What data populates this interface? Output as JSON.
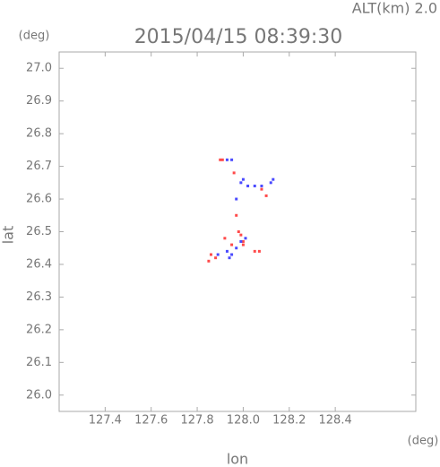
{
  "chart_data": {
    "type": "scatter",
    "title": "2015/04/15 08:39:30",
    "subtitle": "ALT(km) 2.0",
    "y_unit": "(deg)",
    "x_unit": "(deg)",
    "xlabel": "lon",
    "ylabel": "lat",
    "xlim": [
      127.2,
      128.75
    ],
    "ylim": [
      25.95,
      27.05
    ],
    "xticks": [
      127.4,
      127.6,
      127.8,
      {
        "value": 128.0,
        "label": "128.0"
      },
      128.2,
      128.4
    ],
    "yticks": [
      {
        "value": 26.0,
        "label": "26.0"
      },
      26.1,
      26.2,
      26.3,
      26.4,
      26.5,
      26.6,
      26.7,
      26.8,
      26.9,
      {
        "value": 27.0,
        "label": "27.0"
      }
    ],
    "series": [
      {
        "color": "#ff4a4a",
        "x": [
          127.9,
          127.91,
          128.1,
          128.08,
          127.96,
          127.97,
          127.88,
          127.85,
          127.86,
          127.99,
          128.0,
          127.95,
          128.0,
          128.05,
          128.07,
          127.98,
          127.92
        ],
        "y": [
          26.72,
          26.72,
          26.61,
          26.63,
          26.68,
          26.55,
          26.42,
          26.41,
          26.43,
          26.49,
          26.47,
          26.46,
          26.46,
          26.44,
          26.44,
          26.5,
          26.48
        ]
      },
      {
        "color": "#4a4aff",
        "x": [
          127.93,
          127.95,
          127.99,
          128.02,
          128.05,
          128.08,
          128.12,
          128.13,
          128.0,
          127.97,
          127.93,
          127.94,
          127.95,
          127.97,
          127.99,
          128.01,
          127.89
        ],
        "y": [
          26.72,
          26.72,
          26.65,
          26.64,
          26.64,
          26.64,
          26.65,
          26.66,
          26.66,
          26.6,
          26.44,
          26.42,
          26.43,
          26.45,
          26.47,
          26.48,
          26.43
        ]
      }
    ]
  }
}
